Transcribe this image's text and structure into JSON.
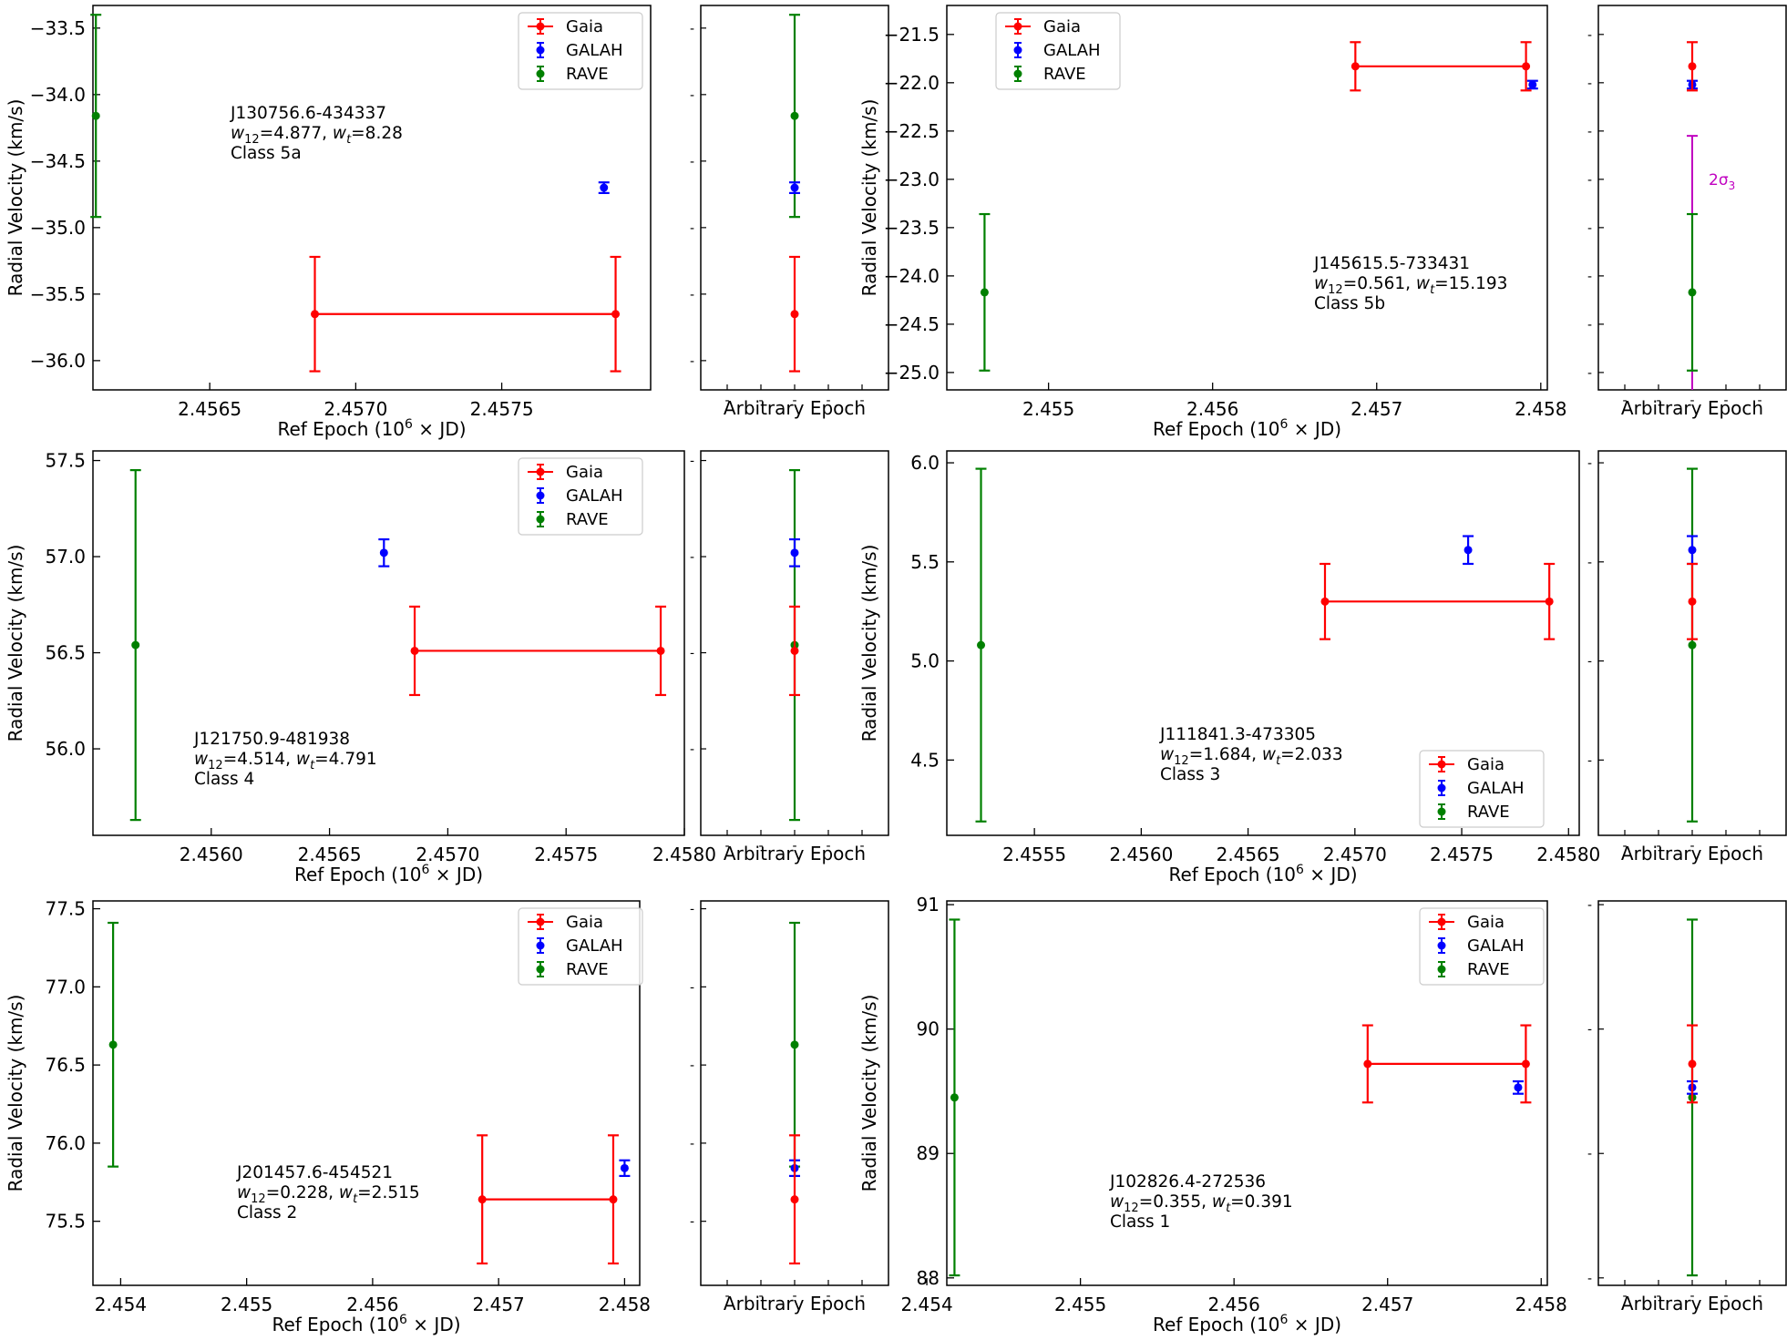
{
  "colors": {
    "gaia": "#ff0000",
    "galah": "#0000ff",
    "rave": "#008000",
    "sigma": "#c000c0"
  },
  "common": {
    "xlabel": "Ref Epoch (10",
    "xlabel_exp": "6",
    "xlabel_end": " × JD)",
    "ylabel": "Radial Velocity (km/s)",
    "side_xlabel": "Arbitrary Epoch",
    "legend": [
      "Gaia",
      "GALAH",
      "RAVE"
    ],
    "w12_sub": "12",
    "wt_sub": "t"
  },
  "chart_data": [
    {
      "type": "scatter",
      "name": "J130756.6-434337",
      "w12": "=4.877, ",
      "wt": "=8.28",
      "class_label": "Class 5a",
      "legend_position": "top-right",
      "xlim": [
        2.4561,
        2.45801
      ],
      "ylim": [
        -36.22,
        -33.33
      ],
      "xticks": [
        "2.4565",
        "2.4570",
        "2.4575"
      ],
      "xtick_values": [
        2.4565,
        2.457,
        2.4575
      ],
      "yticks": [
        "-33.5",
        "-34.0",
        "-34.5",
        "-35.0",
        "-35.5",
        "-36.0"
      ],
      "ytick_values": [
        -33.5,
        -34.0,
        -34.5,
        -35.0,
        -35.5,
        -36.0
      ],
      "gaia": {
        "x_start": 2.45686,
        "x_end": 2.45789,
        "y": -35.65,
        "err": 0.43
      },
      "galah": {
        "x": 2.45785,
        "y": -34.7,
        "err": 0.04
      },
      "rave": {
        "x": 2.45611,
        "y": -34.16,
        "err": 0.76
      }
    },
    {
      "type": "scatter",
      "name": "J145615.5-733431",
      "w12": "=0.561, ",
      "wt": "=15.193",
      "class_label": "Class 5b",
      "legend_position": "top-left",
      "xlim": [
        2.45438,
        2.45804
      ],
      "ylim": [
        -25.18,
        -21.2
      ],
      "xticks": [
        "2.455",
        "2.456",
        "2.457",
        "2.458"
      ],
      "xtick_values": [
        2.455,
        2.456,
        2.457,
        2.458
      ],
      "yticks": [
        "-21.5",
        "-22.0",
        "-22.5",
        "-23.0",
        "-23.5",
        "-24.0",
        "-24.5",
        "-25.0"
      ],
      "ytick_values": [
        -21.5,
        -22.0,
        -22.5,
        -23.0,
        -23.5,
        -24.0,
        -24.5,
        -25.0
      ],
      "gaia": {
        "x_start": 2.45687,
        "x_end": 2.45791,
        "y": -21.83,
        "err": 0.25
      },
      "galah": {
        "x": 2.45795,
        "y": -22.02,
        "err": 0.04
      },
      "rave": {
        "x": 2.45461,
        "y": -24.17,
        "err": 0.81
      },
      "sigma_label": "2σ",
      "sigma_sub": "3",
      "sigma_range": [
        -25.18,
        -22.55
      ]
    },
    {
      "type": "scatter",
      "name": "J121750.9-481938",
      "w12": "=4.514, ",
      "wt": "=4.791",
      "class_label": "Class 4",
      "legend_position": "top-right",
      "xlim": [
        2.4555,
        2.458
      ],
      "ylim": [
        55.55,
        57.55
      ],
      "xticks": [
        "2.4560",
        "2.4565",
        "2.4570",
        "2.4575",
        "2.4580"
      ],
      "xtick_values": [
        2.456,
        2.4565,
        2.457,
        2.4575,
        2.458
      ],
      "yticks": [
        "56.0",
        "56.5",
        "57.0",
        "57.5"
      ],
      "ytick_values": [
        56.0,
        56.5,
        57.0,
        57.5
      ],
      "gaia": {
        "x_start": 2.45686,
        "x_end": 2.4579,
        "y": 56.51,
        "err": 0.23
      },
      "galah": {
        "x": 2.45673,
        "y": 57.02,
        "err": 0.07
      },
      "rave": {
        "x": 2.45568,
        "y": 56.54,
        "err": 0.91
      }
    },
    {
      "type": "scatter",
      "name": "J111841.3-473305",
      "w12": "=1.684, ",
      "wt": "=2.033",
      "class_label": "Class 3",
      "legend_position": "bottom-right",
      "xlim": [
        2.45509,
        2.45805
      ],
      "ylim": [
        4.12,
        6.06
      ],
      "xticks": [
        "2.4555",
        "2.4560",
        "2.4565",
        "2.4570",
        "2.4575",
        "2.4580"
      ],
      "xtick_values": [
        2.4555,
        2.456,
        2.4565,
        2.457,
        2.4575,
        2.458
      ],
      "yticks": [
        "4.5",
        "5.0",
        "5.5",
        "6.0"
      ],
      "ytick_values": [
        4.5,
        5.0,
        5.5,
        6.0
      ],
      "gaia": {
        "x_start": 2.45686,
        "x_end": 2.45791,
        "y": 5.3,
        "err": 0.19
      },
      "galah": {
        "x": 2.45753,
        "y": 5.56,
        "err": 0.07
      },
      "rave": {
        "x": 2.45525,
        "y": 5.08,
        "err": 0.89
      }
    },
    {
      "type": "scatter",
      "name": "J201457.6-454521",
      "w12": "=0.228, ",
      "wt": "=2.515",
      "class_label": "Class 2",
      "legend_position": "top-right",
      "xlim": [
        2.45378,
        2.45812
      ],
      "ylim": [
        75.09,
        77.55
      ],
      "xticks": [
        "2.454",
        "2.455",
        "2.456",
        "2.457",
        "2.458"
      ],
      "xtick_values": [
        2.454,
        2.455,
        2.456,
        2.457,
        2.458
      ],
      "yticks": [
        "75.5",
        "76.0",
        "76.5",
        "77.0",
        "77.5"
      ],
      "ytick_values": [
        75.5,
        76.0,
        76.5,
        77.0,
        77.5
      ],
      "gaia": {
        "x_start": 2.45687,
        "x_end": 2.45791,
        "y": 75.64,
        "err": 0.41
      },
      "galah": {
        "x": 2.458,
        "y": 75.84,
        "err": 0.05
      },
      "rave": {
        "x": 2.45394,
        "y": 76.63,
        "err": 0.78
      }
    },
    {
      "type": "scatter",
      "name": "J102826.4-272536",
      "w12": "=0.355, ",
      "wt": "=0.391",
      "class_label": "Class 1",
      "legend_position": "top-right",
      "xlim": [
        2.45413,
        2.45804
      ],
      "ylim": [
        87.94,
        91.03
      ],
      "xticks": [
        "2.454",
        "2.455",
        "2.456",
        "2.457",
        "2.458"
      ],
      "xtick_values": [
        2.454,
        2.455,
        2.456,
        2.457,
        2.458
      ],
      "yticks": [
        "88",
        "89",
        "90",
        "91"
      ],
      "ytick_values": [
        88,
        89,
        90,
        91
      ],
      "gaia": {
        "x_start": 2.45687,
        "x_end": 2.4579,
        "y": 89.72,
        "err": 0.31
      },
      "galah": {
        "x": 2.45785,
        "y": 89.53,
        "err": 0.05
      },
      "rave": {
        "x": 2.45418,
        "y": 89.45,
        "err": 1.43
      }
    }
  ]
}
